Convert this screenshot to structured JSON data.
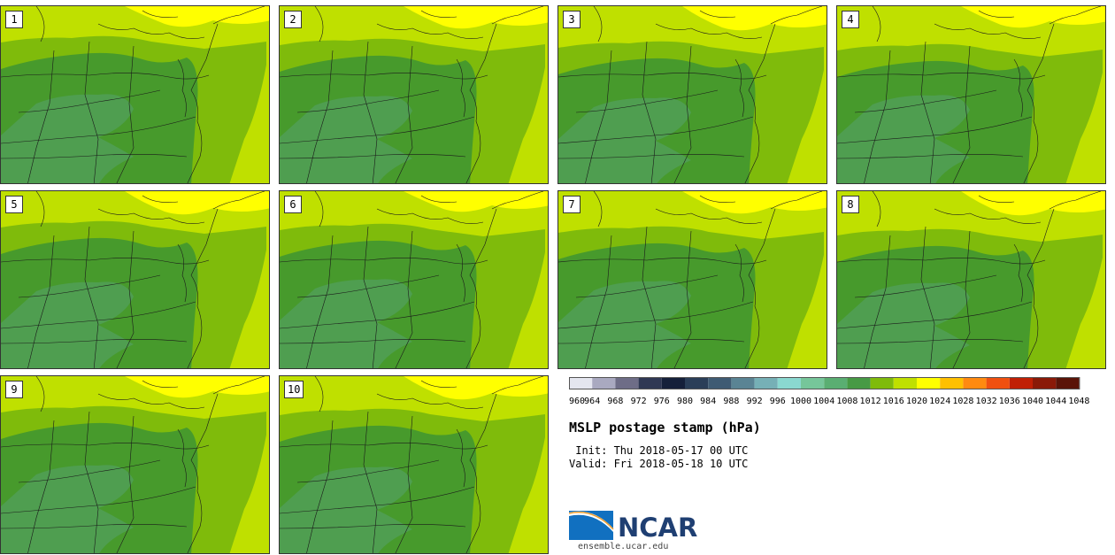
{
  "panels": [
    "1",
    "2",
    "3",
    "4",
    "5",
    "6",
    "7",
    "8",
    "9",
    "10"
  ],
  "colorbar": {
    "labels": [
      "960",
      "964",
      "968",
      "972",
      "976",
      "980",
      "984",
      "988",
      "992",
      "996",
      "1000",
      "1004",
      "1008",
      "1012",
      "1016",
      "1020",
      "1024",
      "1028",
      "1032",
      "1036",
      "1040",
      "1044",
      "1048"
    ],
    "colors": [
      "#e4e6ef",
      "#a9a9c0",
      "#6e6d87",
      "#2f3854",
      "#15203a",
      "#2a3e58",
      "#3f5b73",
      "#5a8494",
      "#76b0b6",
      "#8ad8d0",
      "#76c69a",
      "#5aae72",
      "#479a45",
      "#7fbb0b",
      "#bfe000",
      "#ffff00",
      "#ffc000",
      "#ff8a10",
      "#f05010",
      "#c02005",
      "#8a1a08",
      "#5a1408"
    ]
  },
  "map_colors": {
    "band_1024": "#ffff00",
    "band_1020": "#bfe000",
    "band_1016": "#7fbb0b",
    "band_1012": "#479a2c",
    "band_1008": "#4f9e50"
  },
  "title": "MSLP postage stamp (hPa)",
  "init": " Init: Thu 2018-05-17 00 UTC",
  "valid": "Valid: Fri 2018-05-18 10 UTC",
  "logo": {
    "name": "NCAR",
    "icon": "ncar-arc-logo",
    "website": "ensemble.ucar.edu"
  }
}
